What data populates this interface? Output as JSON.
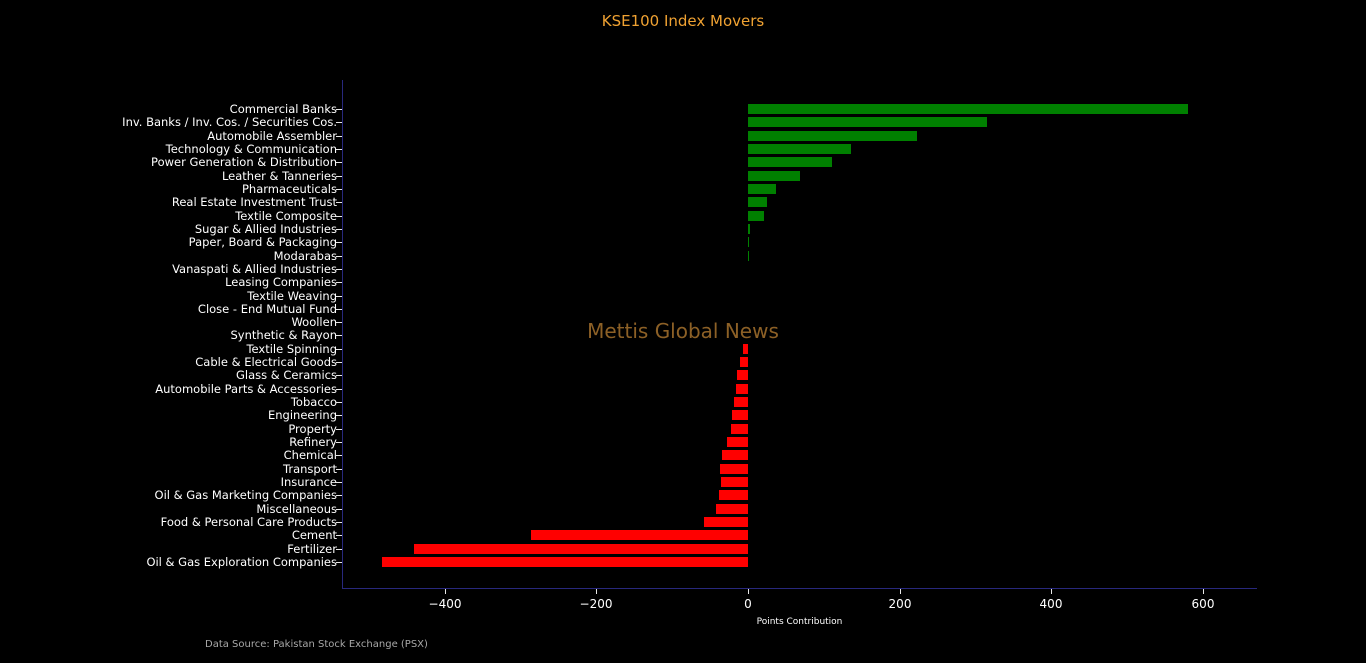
{
  "title": "KSE100 Index Movers",
  "watermark": "Mettis Global News",
  "source_note": "Data Source: Pakistan Stock Exchange (PSX)",
  "colors": {
    "background": "#000000",
    "title": "#f0a232",
    "positive_bar": "#008000",
    "negative_bar": "#ff0000",
    "axis_spine": "#28287d",
    "tick_mark": "#e8e8e8",
    "tick_text": "#ffffff",
    "watermark": "rgba(255,175,70,0.55)",
    "source_note": "#a8a8a8"
  },
  "chart_data": {
    "type": "bar",
    "orientation": "horizontal",
    "title": "KSE100 Index Movers",
    "xlabel": "Points Contribution",
    "ylabel": "",
    "grid": false,
    "legend": false,
    "xlim": [
      -535,
      667
    ],
    "x_ticks": [
      -400,
      -200,
      0,
      200,
      400,
      600
    ],
    "x_tick_labels": [
      "−400",
      "−200",
      "0",
      "200",
      "400",
      "600"
    ],
    "categories": [
      "Commercial Banks",
      "Inv. Banks / Inv. Cos. / Securities Cos.",
      "Automobile Assembler",
      "Technology & Communication",
      "Power Generation & Distribution",
      "Leather & Tanneries",
      "Pharmaceuticals",
      "Real Estate Investment Trust",
      "Textile Composite",
      "Sugar & Allied Industries",
      "Paper, Board & Packaging",
      "Modarabas",
      "Vanaspati & Allied Industries",
      "Leasing Companies",
      "Textile Weaving",
      "Close - End Mutual Fund",
      "Woollen",
      "Synthetic & Rayon",
      "Textile Spinning",
      "Cable & Electrical Goods",
      "Glass & Ceramics",
      "Automobile Parts & Accessories",
      "Tobacco",
      "Engineering",
      "Property",
      "Refinery",
      "Chemical",
      "Transport",
      "Insurance",
      "Oil & Gas Marketing Companies",
      "Miscellaneous",
      "Food & Personal Care Products",
      "Cement",
      "Fertilizer",
      "Oil & Gas Exploration Companies"
    ],
    "values": [
      580,
      315,
      223,
      136,
      111,
      68,
      37,
      25,
      21,
      2.5,
      1.8,
      1.2,
      0.4,
      0.3,
      0.2,
      -0.2,
      -0.3,
      -0.5,
      -6,
      -10,
      -15,
      -16,
      -18,
      -21,
      -23,
      -28,
      -34,
      -37,
      -36,
      -38,
      -42,
      -58,
      -286,
      -440,
      -482
    ]
  }
}
